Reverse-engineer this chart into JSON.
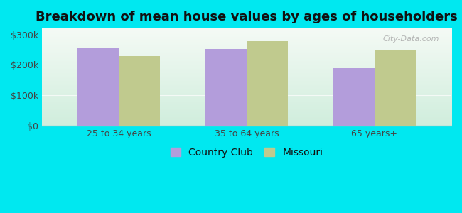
{
  "title": "Breakdown of mean house values by ages of householders",
  "categories": [
    "25 to 34 years",
    "35 to 64 years",
    "65 years+"
  ],
  "series": {
    "Country Club": [
      255000,
      253000,
      190000
    ],
    "Missouri": [
      228000,
      278000,
      248000
    ]
  },
  "bar_colors": {
    "Country Club": "#b39ddb",
    "Missouri": "#c0ca8e"
  },
  "legend_labels": [
    "Country Club",
    "Missouri"
  ],
  "ylim": [
    0,
    320000
  ],
  "yticks": [
    0,
    100000,
    200000,
    300000
  ],
  "ytick_labels": [
    "$0",
    "$100k",
    "$200k",
    "$300k"
  ],
  "background_color": "#00e8f0",
  "plot_bg_top": "#f5faf5",
  "plot_bg_bottom": "#d0eedd",
  "title_fontsize": 13,
  "tick_fontsize": 9,
  "legend_fontsize": 10,
  "bar_width": 0.32,
  "watermark": "City-Data.com"
}
